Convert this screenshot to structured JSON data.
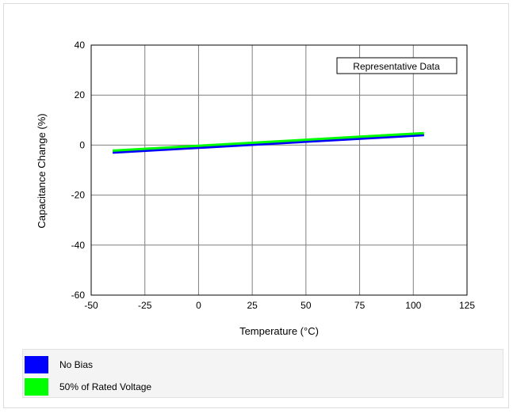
{
  "chart_data": {
    "type": "line",
    "title": "",
    "xlabel": "Temperature (°C)",
    "ylabel": "Capacitance Change (%)",
    "xlim": [
      -50,
      125
    ],
    "ylim": [
      -60,
      40
    ],
    "xticks": [
      -50,
      -25,
      0,
      25,
      50,
      75,
      100,
      125
    ],
    "yticks": [
      -60,
      -40,
      -20,
      0,
      20,
      40
    ],
    "grid": true,
    "annotation": "Representative Data",
    "legend_position": "bottom",
    "series": [
      {
        "name": "No Bias",
        "color": "#0000ff",
        "x": [
          -40,
          105
        ],
        "y": [
          -3,
          4
        ]
      },
      {
        "name": "50% of Rated Voltage",
        "color": "#00ff00",
        "x": [
          -40,
          105
        ],
        "y": [
          -2.2,
          4.8
        ]
      }
    ]
  }
}
